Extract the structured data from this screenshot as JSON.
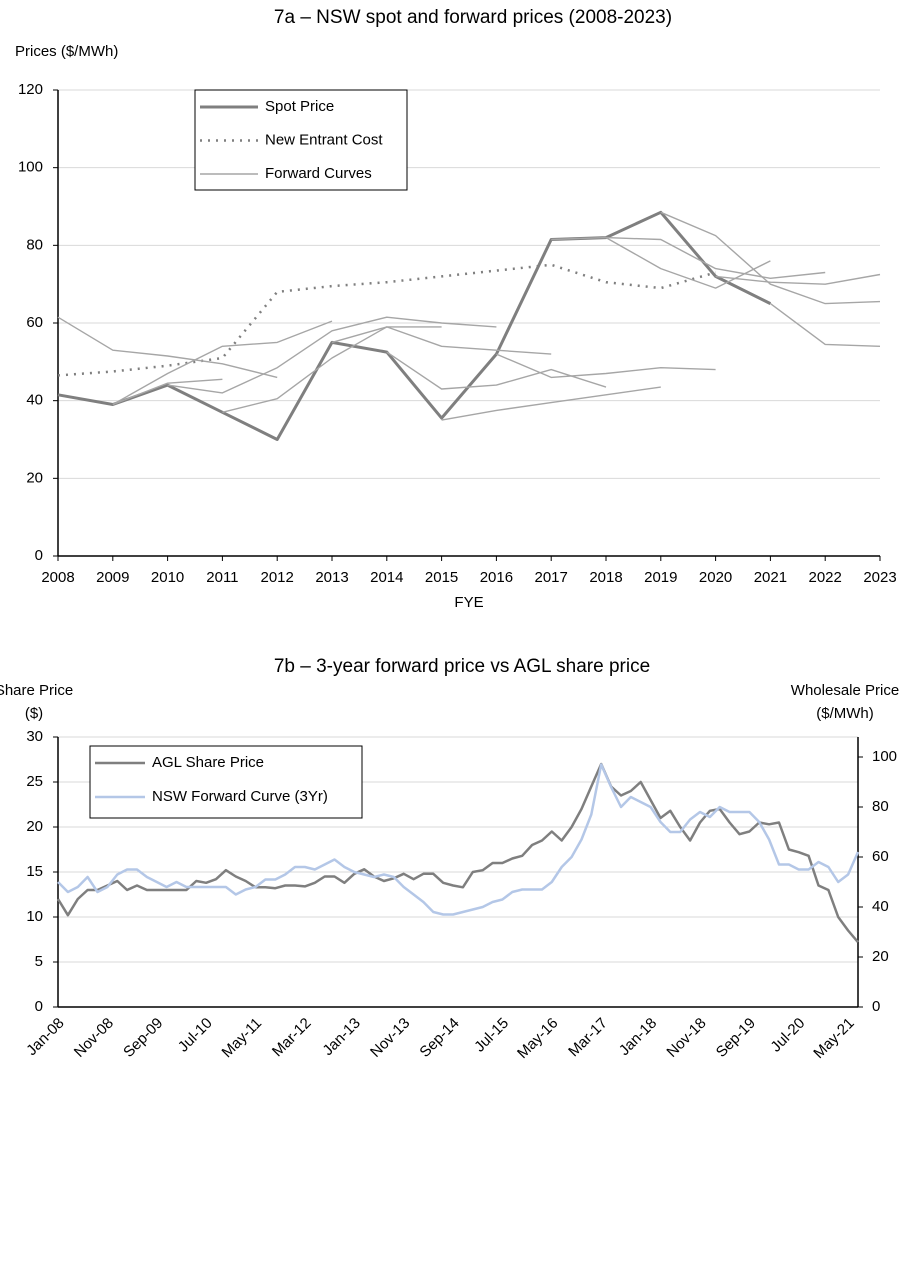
{
  "chart_data": [
    {
      "type": "line",
      "title": "7a – NSW spot and forward prices (2008-2023)",
      "y_label": "Prices ($/MWh)",
      "x_label": "FYE",
      "x": [
        2008,
        2009,
        2010,
        2011,
        2012,
        2013,
        2014,
        2015,
        2016,
        2017,
        2018,
        2019,
        2020,
        2021,
        2022,
        2023
      ],
      "xlim": [
        2008,
        2023
      ],
      "xticks": [
        2008,
        2009,
        2010,
        2011,
        2012,
        2013,
        2014,
        2015,
        2016,
        2017,
        2018,
        2019,
        2020,
        2021,
        2022,
        2023
      ],
      "ylim": [
        0,
        120
      ],
      "yticks": [
        0,
        20,
        40,
        60,
        80,
        100,
        120
      ],
      "grid": true,
      "legend": "top-left",
      "series": [
        {
          "name": "Spot Price",
          "color": "#7f7f7f",
          "line_width": 3,
          "values": [
            41.5,
            39,
            44,
            37,
            30,
            55,
            52.5,
            35.5,
            52,
            81.5,
            82,
            88.5,
            72,
            65,
            null,
            null
          ]
        },
        {
          "name": "New Entrant Cost",
          "color": "#7f7f7f",
          "line_width": 2.5,
          "style": "dotted",
          "values": [
            46.5,
            47.5,
            49,
            51,
            68,
            69.5,
            70.5,
            72,
            73.5,
            75,
            70.5,
            69,
            73,
            null,
            null,
            null
          ]
        },
        {
          "name": "Forward Curves",
          "color": "#a6a6a6",
          "line_width": 1.4,
          "curves": [
            {
              "x": [
                2008,
                2009,
                2010,
                2011,
                2012
              ],
              "values": [
                61.5,
                53,
                51.5,
                49.5,
                46
              ]
            },
            {
              "x": [
                2009,
                2010,
                2011,
                2012,
                2013
              ],
              "values": [
                39,
                47,
                54,
                55,
                60.5
              ]
            },
            {
              "x": [
                2009,
                2010,
                2011
              ],
              "values": [
                39,
                44.5,
                45.5
              ]
            },
            {
              "x": [
                2011,
                2012,
                2013,
                2014,
                2015
              ],
              "values": [
                37,
                40.5,
                51,
                59,
                59
              ]
            },
            {
              "x": [
                2010,
                2011,
                2012,
                2013,
                2014,
                2015,
                2016
              ],
              "values": [
                44,
                42,
                48.5,
                58,
                61.5,
                60,
                59
              ]
            },
            {
              "x": [
                2013,
                2014,
                2015,
                2016,
                2017
              ],
              "values": [
                55,
                59,
                54,
                53,
                52
              ]
            },
            {
              "x": [
                2014,
                2015,
                2016,
                2017,
                2018
              ],
              "values": [
                52.5,
                43,
                44,
                48,
                43.5
              ]
            },
            {
              "x": [
                2015,
                2016,
                2017,
                2018,
                2019
              ],
              "values": [
                35,
                37.5,
                39.5,
                41.5,
                43.5
              ]
            },
            {
              "x": [
                2016,
                2017,
                2018,
                2019,
                2020
              ],
              "values": [
                52,
                46,
                47,
                48.5,
                48
              ]
            },
            {
              "x": [
                2018,
                2019,
                2020,
                2021
              ],
              "values": [
                82,
                74,
                69,
                76
              ]
            },
            {
              "x": [
                2017,
                2018,
                2019,
                2020,
                2021,
                2022
              ],
              "values": [
                81.5,
                82,
                81.5,
                74,
                71.5,
                73
              ]
            },
            {
              "x": [
                2019,
                2020,
                2021,
                2022,
                2023
              ],
              "values": [
                88.5,
                82.5,
                70,
                65,
                65.5
              ]
            },
            {
              "x": [
                2020,
                2021,
                2022,
                2023
              ],
              "values": [
                72,
                70.5,
                70,
                72.5
              ]
            },
            {
              "x": [
                2021,
                2022,
                2023
              ],
              "values": [
                65,
                54.5,
                54
              ]
            }
          ]
        }
      ]
    },
    {
      "type": "line",
      "title": "7b – 3-year forward price vs AGL share price",
      "y_label": [
        "Share Price",
        "($)"
      ],
      "y2_label": [
        "Wholesale Price",
        "($/MWh)"
      ],
      "categories": [
        "Jan-08",
        null,
        null,
        null,
        null,
        "Nov-08",
        null,
        null,
        null,
        null,
        "Sep-09",
        null,
        null,
        null,
        null,
        "Jul-10",
        null,
        null,
        null,
        null,
        "May-11",
        null,
        null,
        null,
        null,
        "Mar-12",
        null,
        null,
        null,
        null,
        "Jan-13",
        null,
        null,
        null,
        null,
        "Nov-13",
        null,
        null,
        null,
        null,
        "Sep-14",
        null,
        null,
        null,
        null,
        "Jul-15",
        null,
        null,
        null,
        null,
        "May-16",
        null,
        null,
        null,
        null,
        "Mar-17",
        null,
        null,
        null,
        null,
        "Jan-18",
        null,
        null,
        null,
        null,
        "Nov-18",
        null,
        null,
        null,
        null,
        "Sep-19",
        null,
        null,
        null,
        null,
        "Jul-20",
        null,
        null,
        null,
        null,
        "May-21",
        null
      ],
      "ylim": [
        0,
        30
      ],
      "yticks": [
        0,
        5,
        10,
        15,
        20,
        25,
        30
      ],
      "y2lim": [
        0,
        108
      ],
      "y2ticks": [
        0,
        20,
        40,
        60,
        80,
        100
      ],
      "grid": true,
      "legend": "top-left",
      "series": [
        {
          "name": "AGL Share Price",
          "color": "#7f7f7f",
          "line_width": 2.5,
          "values": [
            12,
            10.2,
            12,
            13,
            13,
            13.5,
            14,
            13,
            13.5,
            13,
            13,
            13,
            13,
            13,
            14,
            13.8,
            14.2,
            15.2,
            14.5,
            14,
            13.3,
            13.3,
            13.2,
            13.5,
            13.5,
            13.4,
            13.8,
            14.5,
            14.5,
            13.8,
            14.8,
            15.3,
            14.5,
            14,
            14.3,
            14.8,
            14.2,
            14.8,
            14.8,
            13.8,
            13.5,
            13.3,
            15,
            15.2,
            16,
            16,
            16.5,
            16.8,
            18,
            18.5,
            19.5,
            18.5,
            20,
            22,
            24.5,
            27,
            24.5,
            23.5,
            24,
            25,
            23,
            21,
            21.8,
            20,
            18.5,
            20.5,
            21.8,
            22,
            20.5,
            19.2,
            19.5,
            20.5,
            20.3,
            20.5,
            17.5,
            17.2,
            16.8,
            13.5,
            13,
            10,
            8.5,
            7.2
          ]
        },
        {
          "name": "NSW Forward Curve (3Yr)",
          "color": "#b4c7e7",
          "line_width": 2.5,
          "axis": "y2",
          "values": [
            50,
            46,
            48,
            52,
            46,
            48,
            53,
            55,
            55,
            52,
            50,
            48,
            50,
            48,
            48,
            48,
            48,
            48,
            45,
            47,
            48,
            51,
            51,
            53,
            56,
            56,
            55,
            57,
            59,
            56,
            54,
            53,
            52,
            53,
            52,
            48,
            45,
            42,
            38,
            37,
            37,
            38,
            39,
            40,
            42,
            43,
            46,
            47,
            47,
            47,
            50,
            56,
            60,
            67,
            77,
            97,
            88,
            80,
            84,
            82,
            80,
            74,
            70,
            70,
            75,
            78,
            76,
            80,
            78,
            78,
            78,
            74,
            67,
            57,
            57,
            55,
            55,
            58,
            56,
            50,
            53,
            62
          ]
        }
      ]
    }
  ]
}
